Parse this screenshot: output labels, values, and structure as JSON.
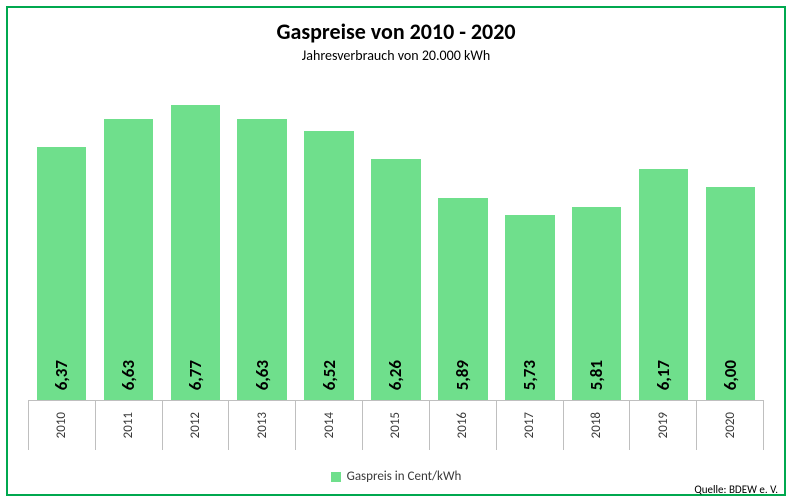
{
  "chart": {
    "type": "bar",
    "title": "Gaspreise von 2010 - 2020",
    "title_fontsize": 22,
    "title_weight": "bold",
    "subtitle": "Jahresverbrauch von 20.000 kWh",
    "subtitle_fontsize": 14,
    "categories": [
      "2010",
      "2011",
      "2012",
      "2013",
      "2014",
      "2015",
      "2016",
      "2017",
      "2018",
      "2019",
      "2020"
    ],
    "values": [
      6.37,
      6.63,
      6.77,
      6.63,
      6.52,
      6.26,
      5.89,
      5.73,
      5.81,
      6.17,
      6.0
    ],
    "value_labels": [
      "6,37",
      "6,63",
      "6,77",
      "6,63",
      "6,52",
      "6,26",
      "5,89",
      "5,73",
      "5,81",
      "6,17",
      "6,00"
    ],
    "bar_color": "#6fdf8c",
    "bar_width_ratio": 0.74,
    "value_label_fontsize": 17,
    "value_label_weight": "bold",
    "value_label_color": "#000000",
    "xlabel_fontsize": 13,
    "xlabel_color": "#3a3a3a",
    "ylim": [
      4.0,
      7.0
    ],
    "background_color": "#ffffff",
    "frame_border_color": "#00a84f",
    "grid_color": "#bfbfbf",
    "legend": {
      "label": "Gaspreis in Cent/kWh",
      "swatch_color": "#6fdf8c",
      "fontsize": 13
    }
  },
  "source": {
    "text": "Quelle: BDEW e. V.",
    "fontsize": 11
  }
}
